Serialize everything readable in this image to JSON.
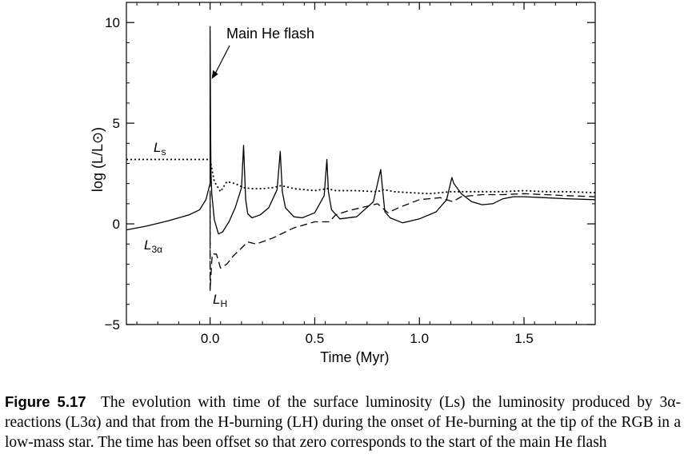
{
  "chart_data": {
    "type": "line",
    "title": "",
    "xlabel": "Time (Myr)",
    "ylabel": "log (L/L⊙)",
    "xlim": [
      -0.4,
      1.84
    ],
    "ylim": [
      -5,
      11
    ],
    "xticks": [
      0.0,
      0.5,
      1.0,
      1.5
    ],
    "xtick_labels": [
      "0.0",
      "0.5",
      "1.0",
      "1.5"
    ],
    "yticks": [
      -5,
      0,
      5,
      10
    ],
    "ytick_labels": [
      "−5",
      "0",
      "5",
      "10"
    ],
    "grid": false,
    "legend": "none (series labelled directly on plot)",
    "marker_line": {
      "x": 0.0,
      "style": "dashed"
    },
    "series": [
      {
        "name": "Ls",
        "style": "dotted",
        "x": [
          -0.4,
          -0.2,
          0.0,
          0.02,
          0.05,
          0.08,
          0.12,
          0.16,
          0.2,
          0.25,
          0.3,
          0.34,
          0.4,
          0.5,
          0.56,
          0.6,
          0.7,
          0.8,
          0.83,
          0.88,
          0.95,
          1.05,
          1.15,
          1.2,
          1.3,
          1.4,
          1.5,
          1.6,
          1.7,
          1.84
        ],
        "values": [
          3.2,
          3.2,
          3.2,
          2.1,
          1.6,
          2.1,
          2.0,
          1.8,
          1.75,
          1.75,
          1.8,
          1.9,
          1.75,
          1.65,
          1.75,
          1.65,
          1.65,
          1.6,
          1.7,
          1.6,
          1.55,
          1.5,
          1.6,
          1.6,
          1.6,
          1.6,
          1.65,
          1.6,
          1.6,
          1.55
        ]
      },
      {
        "name": "L3α",
        "style": "solid",
        "x": [
          -0.4,
          -0.3,
          -0.2,
          -0.1,
          -0.05,
          -0.02,
          0.0,
          0.0,
          0.002,
          0.004,
          0.008,
          0.02,
          0.04,
          0.06,
          0.09,
          0.12,
          0.15,
          0.16,
          0.165,
          0.17,
          0.18,
          0.2,
          0.24,
          0.28,
          0.32,
          0.335,
          0.345,
          0.36,
          0.4,
          0.44,
          0.5,
          0.545,
          0.558,
          0.565,
          0.58,
          0.62,
          0.7,
          0.78,
          0.815,
          0.825,
          0.835,
          0.86,
          0.92,
          1.0,
          1.08,
          1.13,
          1.155,
          1.165,
          1.2,
          1.25,
          1.3,
          1.35,
          1.4,
          1.45,
          1.5,
          1.6,
          1.7,
          1.84
        ],
        "values": [
          -0.3,
          -0.1,
          0.15,
          0.45,
          0.7,
          1.2,
          2.0,
          9.8,
          5.0,
          2.6,
          1.5,
          0.2,
          -0.5,
          -0.4,
          0.1,
          0.8,
          1.8,
          3.9,
          2.5,
          1.2,
          0.5,
          0.3,
          0.45,
          0.8,
          1.7,
          3.6,
          1.6,
          0.8,
          0.35,
          0.3,
          0.55,
          1.4,
          3.2,
          1.6,
          0.7,
          0.25,
          0.35,
          1.1,
          2.7,
          1.6,
          0.6,
          0.3,
          0.05,
          0.25,
          0.6,
          1.2,
          2.3,
          2.0,
          1.5,
          1.1,
          0.95,
          1.0,
          1.25,
          1.35,
          1.35,
          1.3,
          1.25,
          1.2
        ]
      },
      {
        "name": "LH",
        "style": "dashed",
        "x": [
          0.0,
          0.0,
          0.01,
          0.03,
          0.05,
          0.08,
          0.11,
          0.14,
          0.18,
          0.22,
          0.3,
          0.4,
          0.5,
          0.57,
          0.6,
          0.66,
          0.74,
          0.8,
          0.85,
          0.9,
          1.0,
          1.1,
          1.16,
          1.2,
          1.3,
          1.4,
          1.5,
          1.6,
          1.7,
          1.84
        ],
        "values": [
          1.5,
          -3.3,
          -1.5,
          -1.5,
          -2.2,
          -2.0,
          -1.6,
          -1.3,
          -0.9,
          -1.0,
          -0.7,
          -0.2,
          0.1,
          0.1,
          0.45,
          0.65,
          0.85,
          1.0,
          0.55,
          0.8,
          1.2,
          1.3,
          1.1,
          1.35,
          1.45,
          1.45,
          1.5,
          1.45,
          1.4,
          1.35
        ]
      }
    ],
    "annotations": [
      {
        "text": "Main He flash",
        "arrow_to": [
          0.0,
          7.2
        ]
      }
    ],
    "series_labels": {
      "Ls": {
        "base": "L",
        "sub": "s"
      },
      "L3a": {
        "base": "L",
        "sub": "3α"
      },
      "LH": {
        "base": "L",
        "sub": "H"
      }
    }
  },
  "caption": {
    "label": "Figure 5.17",
    "text": "The evolution with time of the surface luminosity (Ls) the luminosity produced by 3α-reactions (L3α) and that from the H-burning (LH) during the onset of He-burning at the tip of the RGB in a low-mass star. The time has been offset so that zero corresponds to the start of the main He flash"
  }
}
